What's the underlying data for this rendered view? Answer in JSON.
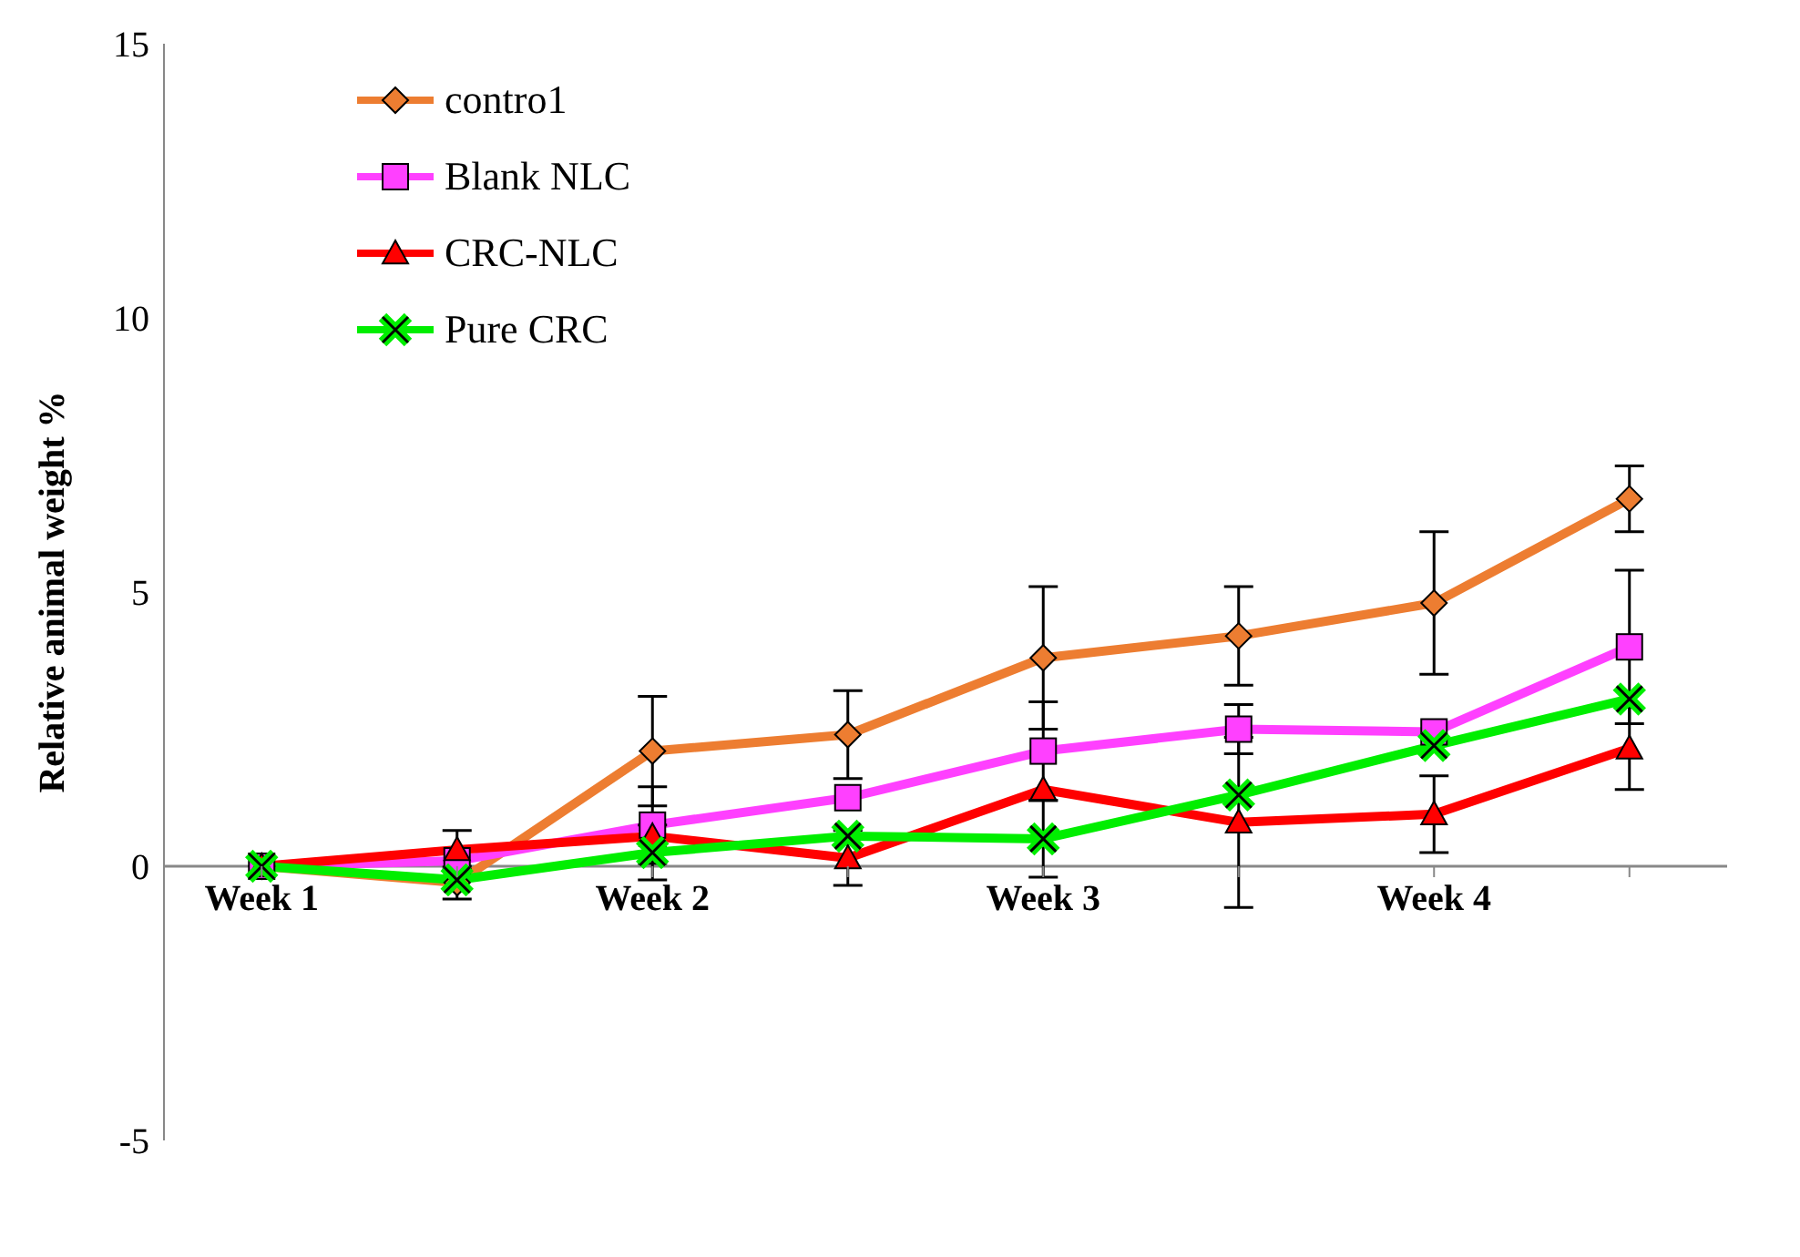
{
  "chart_data": {
    "type": "line",
    "ylabel": "Relative animal weight %",
    "categories": [
      "Week 1",
      null,
      "Week 2",
      null,
      "Week 3",
      null,
      "Week 4",
      null
    ],
    "series": [
      {
        "name": "contro1",
        "color": "#ed7d31",
        "marker": "diamond",
        "values": [
          0,
          -0.3,
          2.1,
          2.4,
          3.8,
          4.2,
          4.8,
          6.7
        ],
        "errors": [
          null,
          0.3,
          1.0,
          0.8,
          1.3,
          0.9,
          1.3,
          0.6
        ]
      },
      {
        "name": "Blank NLC",
        "color": "#ff40ff",
        "marker": "square",
        "values": [
          0,
          0.1,
          0.75,
          1.25,
          2.1,
          2.5,
          2.45,
          4.0
        ],
        "errors": [
          null,
          null,
          0.7,
          null,
          0.9,
          0.45,
          null,
          1.4
        ]
      },
      {
        "name": "CRC-NLC",
        "color": "#ff0000",
        "marker": "triangle",
        "values": [
          0,
          0.3,
          0.55,
          0.15,
          1.4,
          0.8,
          0.95,
          2.15
        ],
        "errors": [
          null,
          0.35,
          null,
          0.5,
          null,
          1.55,
          0.7,
          0.75
        ]
      },
      {
        "name": "Pure CRC",
        "color": "#00ee00",
        "marker": "cross",
        "values": [
          0,
          -0.25,
          0.25,
          0.55,
          0.5,
          1.3,
          2.2,
          3.05
        ],
        "errors": [
          null,
          null,
          0.5,
          null,
          0.7,
          null,
          null,
          null
        ]
      }
    ],
    "ylim": [
      -5,
      15
    ],
    "yticks": [
      -5,
      0,
      5,
      10,
      15
    ],
    "legend": "top left"
  }
}
